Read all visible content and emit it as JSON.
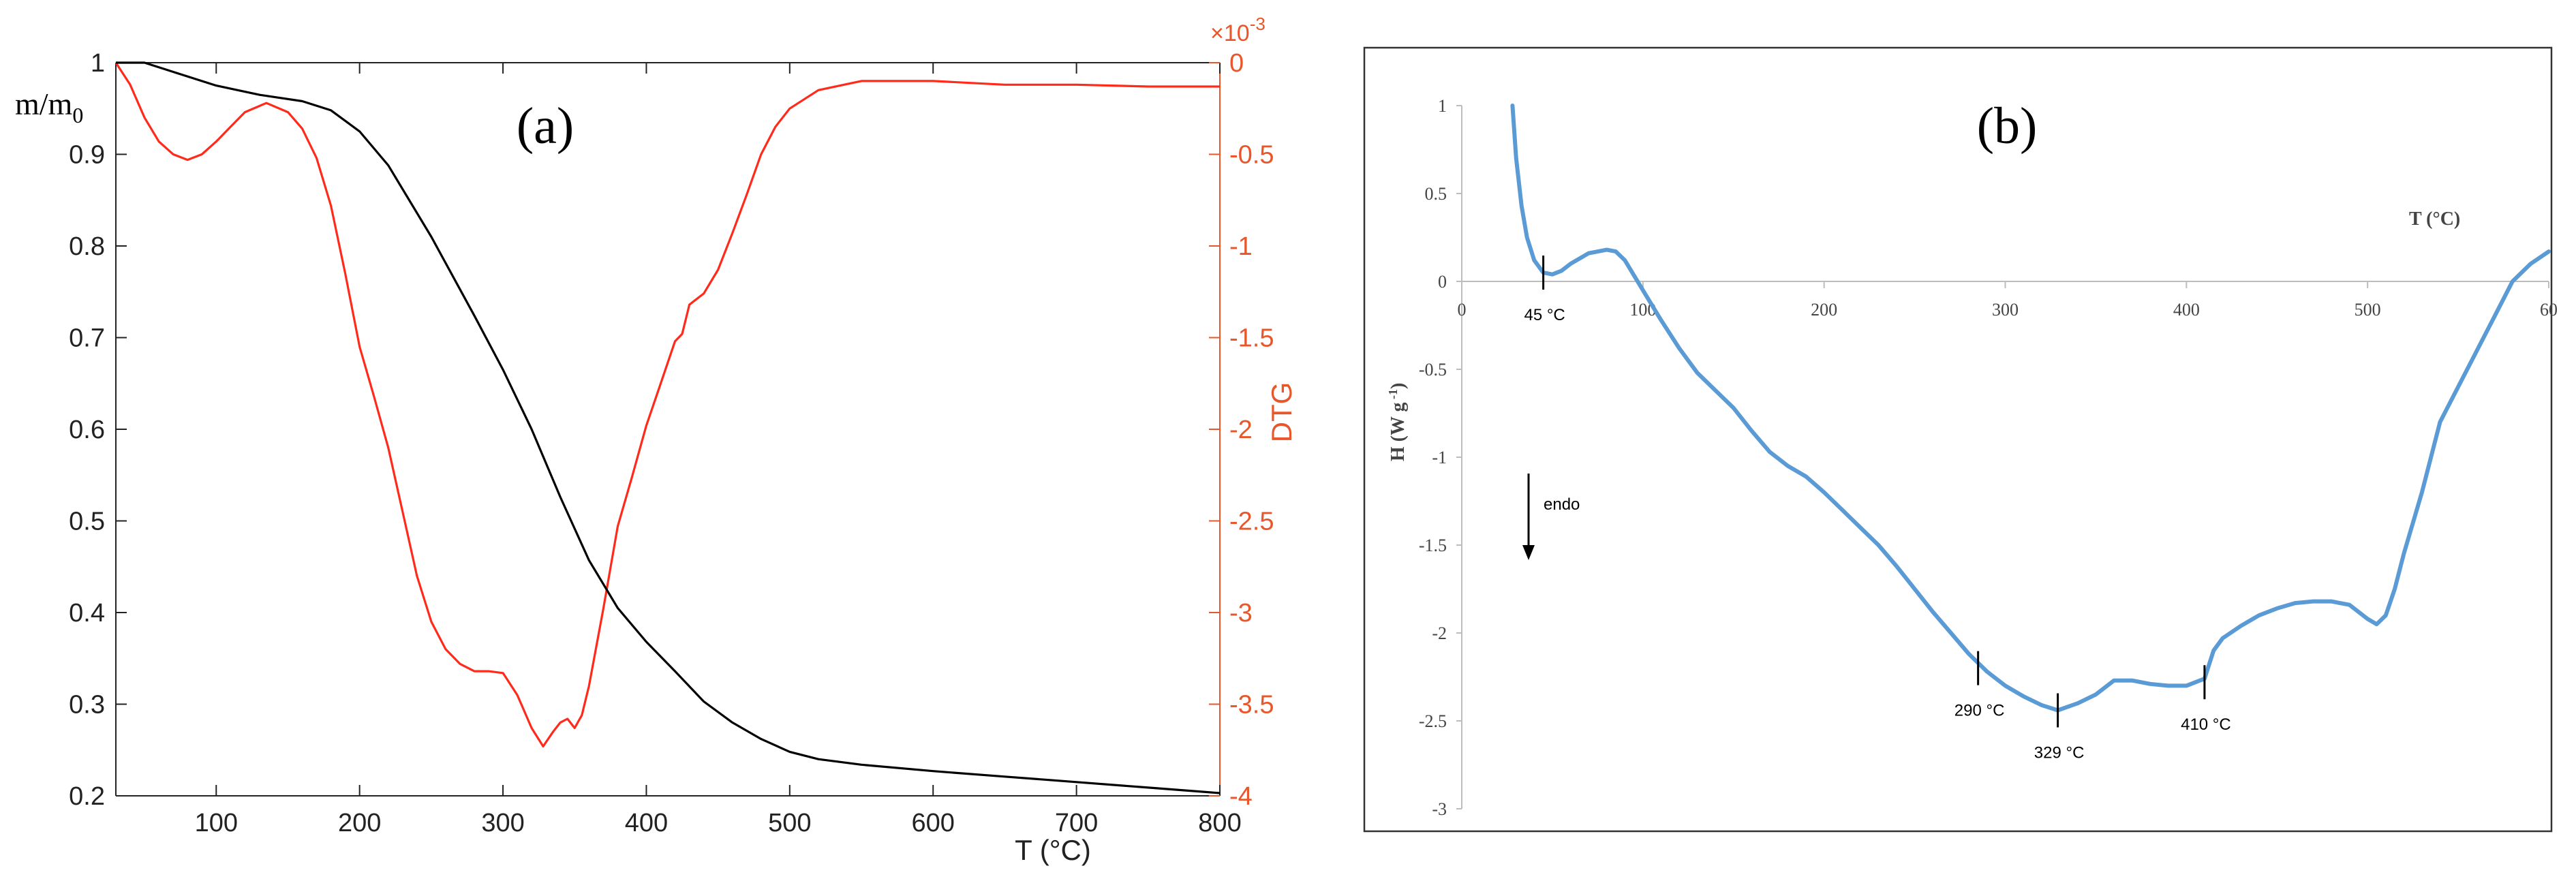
{
  "chart_data": [
    {
      "panel_label": "(a)",
      "type": "line",
      "xlabel": "T (°C)",
      "ylabel": "m/m",
      "ylabel_subscript": "0",
      "y2label": "DTG",
      "y2_exponent": "×10",
      "y2_exponent_power": "-3",
      "xlim": [
        30,
        800
      ],
      "ylim": [
        0.2,
        1
      ],
      "y2lim": [
        -4,
        0
      ],
      "xticks": [
        "100",
        "200",
        "300",
        "400",
        "500",
        "600",
        "700",
        "800"
      ],
      "yticks": [
        "0.2",
        "0.3",
        "0.4",
        "0.5",
        "0.6",
        "0.7",
        "0.8",
        "0.9",
        "1"
      ],
      "y2ticks": [
        "-4",
        "-3.5",
        "-3",
        "-2.5",
        "-2",
        "-1.5",
        "-1",
        "-0.5",
        "0"
      ],
      "colors": {
        "mass": "#000000",
        "dtg": "#ff2a1a",
        "right_axis": "#e8562a"
      },
      "series": [
        {
          "axis": "left",
          "x": [
            30,
            50,
            70,
            100,
            130,
            160,
            180,
            200,
            220,
            250,
            280,
            300,
            320,
            340,
            360,
            380,
            400,
            420,
            440,
            460,
            480,
            500,
            520,
            550,
            600,
            650,
            700,
            750,
            800
          ],
          "y": [
            1.0,
            1.0,
            0.99,
            0.975,
            0.965,
            0.958,
            0.948,
            0.925,
            0.888,
            0.81,
            0.724,
            0.665,
            0.6,
            0.526,
            0.457,
            0.405,
            0.368,
            0.336,
            0.303,
            0.28,
            0.262,
            0.248,
            0.24,
            0.234,
            0.227,
            0.221,
            0.215,
            0.209,
            0.203
          ]
        },
        {
          "axis": "right",
          "x": [
            30,
            40,
            50,
            60,
            70,
            80,
            90,
            100,
            110,
            120,
            135,
            150,
            160,
            170,
            180,
            190,
            200,
            210,
            220,
            230,
            240,
            250,
            260,
            270,
            280,
            290,
            300,
            310,
            320,
            328,
            335,
            340,
            345,
            350,
            355,
            360,
            370,
            380,
            390,
            400,
            410,
            420,
            425,
            430,
            440,
            450,
            460,
            470,
            480,
            490,
            500,
            520,
            550,
            600,
            650,
            700,
            750,
            800
          ],
          "y": [
            0.0,
            -0.12,
            -0.3,
            -0.43,
            -0.5,
            -0.53,
            -0.5,
            -0.43,
            -0.35,
            -0.27,
            -0.22,
            -0.27,
            -0.36,
            -0.52,
            -0.78,
            -1.15,
            -1.55,
            -1.82,
            -2.1,
            -2.45,
            -2.8,
            -3.05,
            -3.2,
            -3.28,
            -3.32,
            -3.32,
            -3.33,
            -3.45,
            -3.63,
            -3.73,
            -3.65,
            -3.6,
            -3.58,
            -3.63,
            -3.56,
            -3.4,
            -2.98,
            -2.53,
            -2.26,
            -1.98,
            -1.75,
            -1.52,
            -1.48,
            -1.32,
            -1.26,
            -1.13,
            -0.93,
            -0.72,
            -0.5,
            -0.35,
            -0.25,
            -0.15,
            -0.1,
            -0.1,
            -0.12,
            -0.12,
            -0.13,
            -0.13
          ]
        }
      ]
    },
    {
      "panel_label": "(b)",
      "type": "line",
      "xlabel": "T (°C)",
      "ylabel": "H  (W g",
      "ylabel_superscript": " -1",
      "ylabel_close": ")",
      "xlim": [
        0,
        600
      ],
      "ylim": [
        -3,
        1
      ],
      "xticks": [
        "0",
        "100",
        "200",
        "300",
        "400",
        "500",
        "60"
      ],
      "yticks": [
        "1",
        "0.5",
        "0",
        "-0.5",
        "-1",
        "-1.5",
        "-2",
        "-2.5",
        "-3"
      ],
      "endo_label": "endo",
      "color": "#5b9bd5",
      "annotations": [
        {
          "text": "45 °C",
          "x": 45,
          "y": 0.05
        },
        {
          "text": "290 °C",
          "x": 285,
          "y": -2.2
        },
        {
          "text": "329 °C",
          "x": 329,
          "y": -2.44
        },
        {
          "text": "410 °C",
          "x": 410,
          "y": -2.28
        }
      ],
      "series": [
        {
          "x": [
            28,
            30,
            33,
            36,
            40,
            45,
            50,
            55,
            60,
            70,
            80,
            85,
            90,
            100,
            110,
            120,
            130,
            140,
            150,
            160,
            170,
            180,
            190,
            200,
            210,
            220,
            230,
            240,
            250,
            260,
            270,
            280,
            290,
            300,
            310,
            320,
            329,
            340,
            350,
            360,
            370,
            380,
            390,
            400,
            410,
            415,
            420,
            430,
            440,
            450,
            460,
            470,
            480,
            490,
            500,
            505,
            510,
            515,
            520,
            530,
            540,
            550,
            560,
            570,
            580,
            590,
            600
          ],
          "y": [
            1.0,
            0.7,
            0.43,
            0.25,
            0.12,
            0.05,
            0.04,
            0.06,
            0.1,
            0.16,
            0.18,
            0.17,
            0.12,
            -0.05,
            -0.22,
            -0.38,
            -0.52,
            -0.62,
            -0.72,
            -0.85,
            -0.97,
            -1.05,
            -1.11,
            -1.2,
            -1.3,
            -1.4,
            -1.5,
            -1.62,
            -1.75,
            -1.88,
            -2.0,
            -2.12,
            -2.22,
            -2.3,
            -2.36,
            -2.41,
            -2.44,
            -2.4,
            -2.35,
            -2.27,
            -2.27,
            -2.29,
            -2.3,
            -2.3,
            -2.26,
            -2.1,
            -2.03,
            -1.96,
            -1.9,
            -1.86,
            -1.83,
            -1.82,
            -1.82,
            -1.84,
            -1.92,
            -1.95,
            -1.9,
            -1.75,
            -1.55,
            -1.2,
            -0.8,
            -0.6,
            -0.4,
            -0.2,
            0.0,
            0.1,
            0.17
          ]
        }
      ]
    }
  ]
}
